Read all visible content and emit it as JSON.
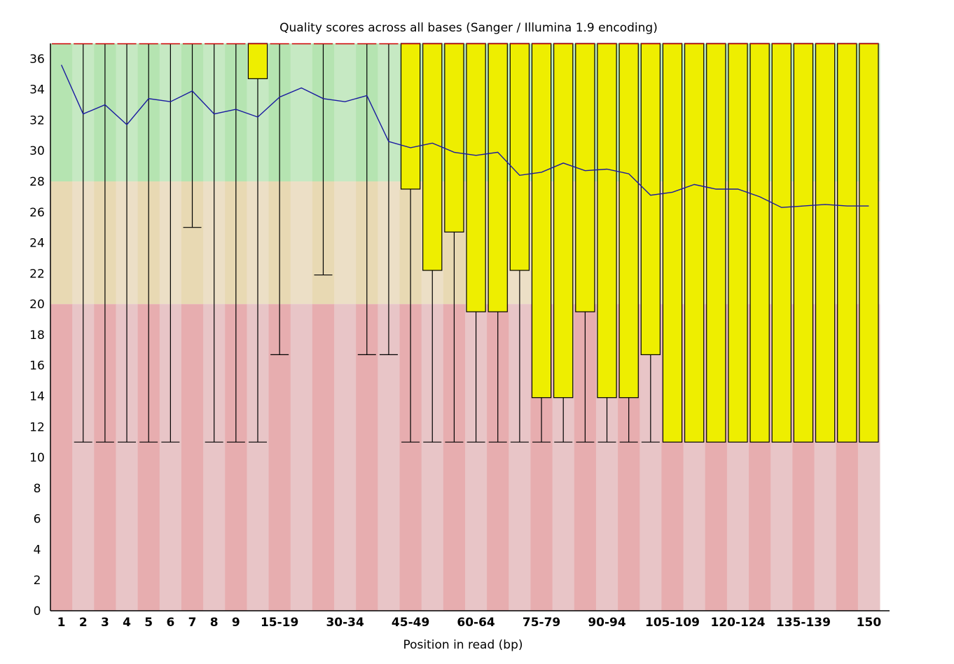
{
  "chart_data": {
    "type": "boxplot",
    "title": "Quality scores across all bases (Sanger / Illumina 1.9 encoding)",
    "xlabel": "Position in read (bp)",
    "ylabel": "",
    "ylim": [
      0,
      37
    ],
    "yticks": [
      "0",
      "2",
      "4",
      "6",
      "8",
      "10",
      "12",
      "14",
      "16",
      "18",
      "20",
      "22",
      "24",
      "26",
      "28",
      "30",
      "32",
      "34",
      "36"
    ],
    "xtick_labels": [
      "1",
      "2",
      "3",
      "4",
      "5",
      "6",
      "7",
      "8",
      "9",
      "15-19",
      "30-34",
      "45-49",
      "60-64",
      "75-79",
      "90-94",
      "105-109",
      "120-124",
      "135-139",
      "150"
    ],
    "quality_bands": [
      {
        "name": "good",
        "from": 28,
        "to": 37
      },
      {
        "name": "reasonable",
        "from": 20,
        "to": 28
      },
      {
        "name": "poor",
        "from": 0,
        "to": 20
      }
    ],
    "colors": {
      "good_a": "#b5e4b1",
      "good_b": "#c6e9c3",
      "reasonable_a": "#e8d9b3",
      "reasonable_b": "#ecdfc6",
      "poor_a": "#e7adaf",
      "poor_b": "#e8c5c7",
      "box": "#eeee00",
      "mean_line": "#1a1aa0",
      "median": "#cc0000"
    },
    "series": [
      {
        "name": "Upper quartile (box top)",
        "values": [
          37,
          37,
          37,
          37,
          37,
          37,
          37,
          37,
          37,
          37,
          37,
          37,
          37,
          37,
          37,
          37,
          37,
          37,
          37,
          37,
          37,
          37,
          37,
          37,
          37,
          37,
          37,
          37,
          37,
          37,
          37,
          37,
          37,
          37,
          37,
          37,
          37,
          37
        ]
      },
      {
        "name": "Median",
        "values": [
          37,
          37,
          37,
          37,
          37,
          37,
          37,
          37,
          37,
          37,
          37,
          37,
          37,
          37,
          37,
          37,
          37,
          37,
          37,
          37,
          37,
          37,
          37,
          37,
          37,
          37,
          37,
          37,
          37,
          37,
          37,
          37,
          37,
          37,
          37,
          37,
          37,
          37
        ]
      },
      {
        "name": "Lower quartile (box bottom)",
        "values": [
          37,
          37,
          37,
          37,
          37,
          37,
          37,
          37,
          37,
          34.7,
          37,
          37,
          37,
          37,
          37,
          37,
          27.5,
          22.2,
          24.7,
          19.5,
          19.5,
          22.2,
          13.9,
          13.9,
          19.5,
          13.9,
          13.9,
          16.7,
          11,
          11,
          11,
          11,
          11,
          11,
          11,
          11,
          11,
          11
        ]
      },
      {
        "name": "10th percentile (lower whisker)",
        "values": [
          37,
          11,
          11,
          11,
          11,
          11,
          25,
          11,
          11,
          11,
          16.7,
          37,
          21.9,
          37,
          16.7,
          16.7,
          11,
          11,
          11,
          11,
          11,
          11,
          11,
          11,
          11,
          11,
          11,
          11,
          11,
          11,
          11,
          11,
          11,
          11,
          11,
          11,
          11,
          11
        ]
      },
      {
        "name": "Mean",
        "values": [
          35.6,
          32.4,
          33,
          31.7,
          33.4,
          33.2,
          33.9,
          32.4,
          32.7,
          32.2,
          33.5,
          34.1,
          33.4,
          33.2,
          33.6,
          30.6,
          30.2,
          30.5,
          29.9,
          29.7,
          29.9,
          28.4,
          28.6,
          29.2,
          28.7,
          28.8,
          28.5,
          27.1,
          27.3,
          27.8,
          27.5,
          27.5,
          27,
          26.3,
          26.4,
          26.5,
          26.4,
          26.4
        ]
      }
    ]
  }
}
